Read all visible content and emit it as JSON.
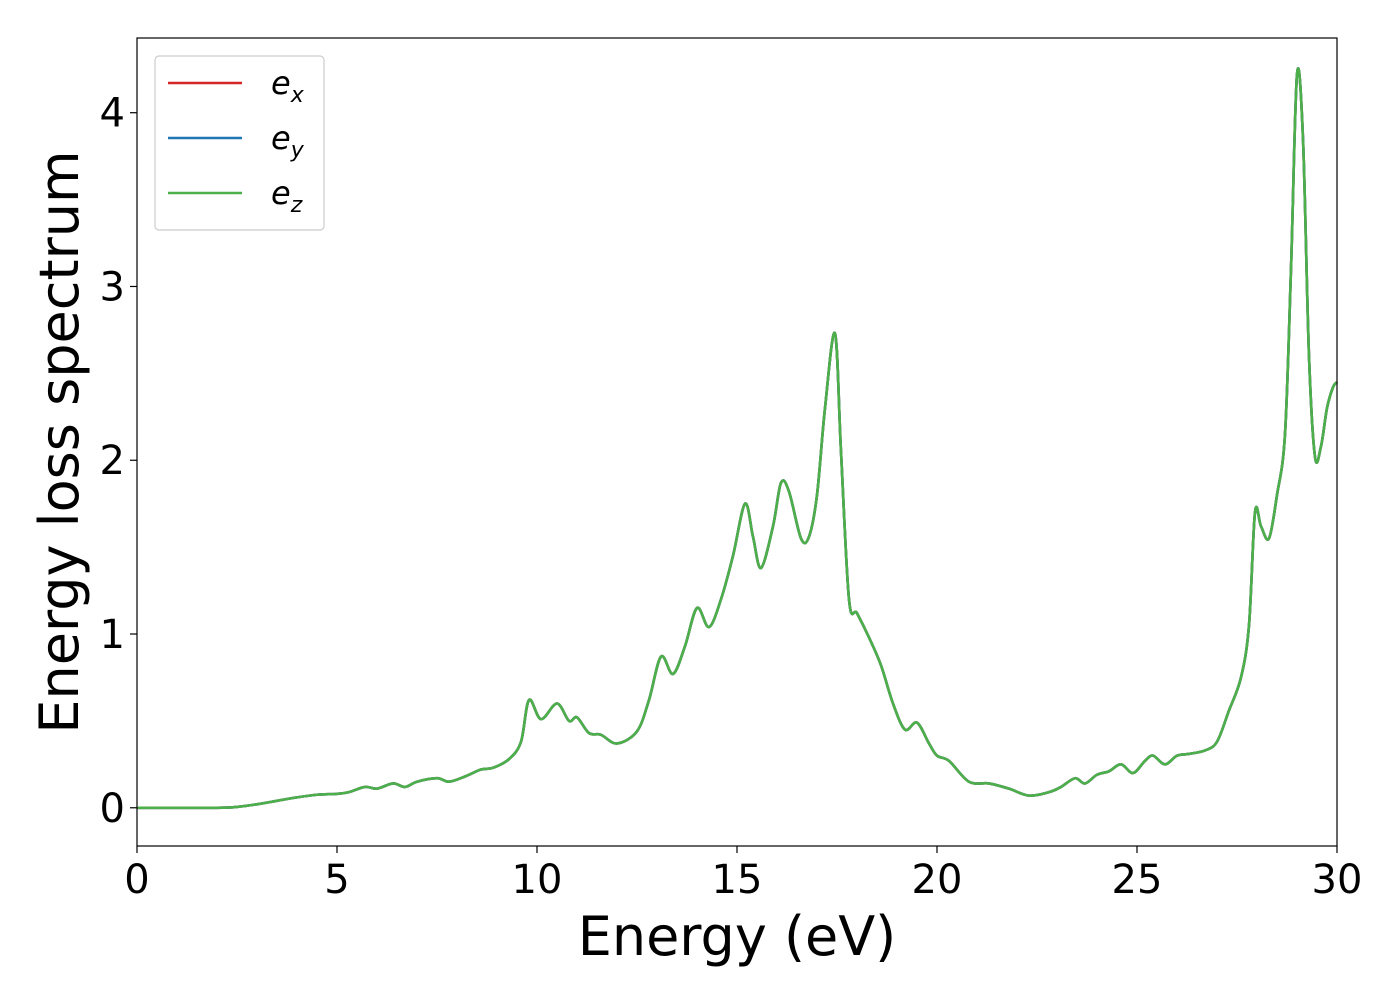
{
  "chart_data": {
    "type": "line",
    "title": "",
    "xlabel": "Energy (eV)",
    "ylabel": "Energy loss spectrum",
    "xlim": [
      0,
      30
    ],
    "ylim": [
      -0.22,
      4.43
    ],
    "xticks": [
      0,
      5,
      10,
      15,
      20,
      25,
      30
    ],
    "yticks": [
      0,
      1,
      2,
      3,
      4
    ],
    "xtick_labels": [
      "0",
      "5",
      "10",
      "15",
      "20",
      "25",
      "30"
    ],
    "ytick_labels": [
      "0",
      "1",
      "2",
      "3",
      "4"
    ],
    "grid": false,
    "legend_position": "top-left",
    "x": [
      0,
      1,
      2,
      2.5,
      3,
      3.5,
      4,
      4.5,
      5,
      5.3,
      5.7,
      6,
      6.4,
      6.7,
      7,
      7.5,
      7.8,
      8.2,
      8.6,
      8.9,
      9.3,
      9.6,
      9.8,
      10.1,
      10.5,
      10.8,
      11.0,
      11.3,
      11.6,
      12.0,
      12.5,
      12.8,
      13.1,
      13.4,
      13.7,
      14.0,
      14.3,
      14.6,
      14.9,
      15.2,
      15.4,
      15.6,
      15.9,
      16.1,
      16.3,
      16.6,
      16.8,
      17.0,
      17.2,
      17.45,
      17.6,
      17.8,
      18.0,
      18.3,
      18.6,
      18.9,
      19.2,
      19.5,
      19.8,
      20.0,
      20.3,
      20.8,
      21.3,
      21.8,
      22.3,
      22.8,
      23.1,
      23.45,
      23.7,
      24.0,
      24.3,
      24.6,
      24.9,
      25.2,
      25.4,
      25.7,
      26.0,
      26.3,
      26.7,
      27.0,
      27.3,
      27.6,
      27.8,
      27.95,
      28.1,
      28.3,
      28.5,
      28.7,
      28.85,
      29.0,
      29.15,
      29.3,
      29.45,
      29.6,
      29.75,
      29.9,
      30.0
    ],
    "series": [
      {
        "name": "e_x",
        "color": "#d62728",
        "values": [
          0,
          0,
          0,
          0.005,
          0.02,
          0.04,
          0.06,
          0.075,
          0.08,
          0.09,
          0.12,
          0.11,
          0.14,
          0.12,
          0.15,
          0.17,
          0.15,
          0.18,
          0.22,
          0.23,
          0.28,
          0.38,
          0.62,
          0.51,
          0.6,
          0.5,
          0.52,
          0.43,
          0.42,
          0.37,
          0.44,
          0.62,
          0.87,
          0.77,
          0.93,
          1.15,
          1.04,
          1.2,
          1.45,
          1.75,
          1.56,
          1.38,
          1.62,
          1.87,
          1.82,
          1.55,
          1.56,
          1.8,
          2.3,
          2.73,
          2.05,
          1.2,
          1.12,
          0.98,
          0.82,
          0.6,
          0.45,
          0.49,
          0.37,
          0.3,
          0.27,
          0.15,
          0.14,
          0.11,
          0.07,
          0.09,
          0.12,
          0.17,
          0.14,
          0.19,
          0.21,
          0.25,
          0.2,
          0.27,
          0.3,
          0.25,
          0.3,
          0.31,
          0.33,
          0.38,
          0.56,
          0.75,
          1.05,
          1.7,
          1.62,
          1.55,
          1.8,
          2.15,
          3.1,
          4.22,
          3.85,
          2.6,
          2.02,
          2.08,
          2.3,
          2.42,
          2.45
        ]
      },
      {
        "name": "e_y",
        "color": "#1f77b4",
        "values": [
          0,
          0,
          0,
          0.005,
          0.02,
          0.04,
          0.06,
          0.075,
          0.08,
          0.09,
          0.12,
          0.11,
          0.14,
          0.12,
          0.15,
          0.17,
          0.15,
          0.18,
          0.22,
          0.23,
          0.28,
          0.38,
          0.62,
          0.51,
          0.6,
          0.5,
          0.52,
          0.43,
          0.42,
          0.37,
          0.44,
          0.62,
          0.87,
          0.77,
          0.93,
          1.15,
          1.04,
          1.2,
          1.45,
          1.75,
          1.56,
          1.38,
          1.62,
          1.87,
          1.82,
          1.55,
          1.56,
          1.8,
          2.3,
          2.73,
          2.05,
          1.2,
          1.12,
          0.98,
          0.82,
          0.6,
          0.45,
          0.49,
          0.37,
          0.3,
          0.27,
          0.15,
          0.14,
          0.11,
          0.07,
          0.09,
          0.12,
          0.17,
          0.14,
          0.19,
          0.21,
          0.25,
          0.2,
          0.27,
          0.3,
          0.25,
          0.3,
          0.31,
          0.33,
          0.38,
          0.56,
          0.75,
          1.05,
          1.7,
          1.62,
          1.55,
          1.8,
          2.15,
          3.1,
          4.22,
          3.85,
          2.6,
          2.02,
          2.08,
          2.3,
          2.42,
          2.45
        ]
      },
      {
        "name": "e_z",
        "color": "#4daf4a",
        "values": [
          0,
          0,
          0,
          0.005,
          0.02,
          0.04,
          0.06,
          0.075,
          0.08,
          0.09,
          0.12,
          0.11,
          0.14,
          0.12,
          0.15,
          0.17,
          0.15,
          0.18,
          0.22,
          0.23,
          0.28,
          0.38,
          0.62,
          0.51,
          0.6,
          0.5,
          0.52,
          0.43,
          0.42,
          0.37,
          0.44,
          0.62,
          0.87,
          0.77,
          0.93,
          1.15,
          1.04,
          1.2,
          1.45,
          1.75,
          1.56,
          1.38,
          1.62,
          1.87,
          1.82,
          1.55,
          1.56,
          1.8,
          2.3,
          2.73,
          2.05,
          1.2,
          1.12,
          0.98,
          0.82,
          0.6,
          0.45,
          0.49,
          0.37,
          0.3,
          0.27,
          0.15,
          0.14,
          0.11,
          0.07,
          0.09,
          0.12,
          0.17,
          0.14,
          0.19,
          0.21,
          0.25,
          0.2,
          0.27,
          0.3,
          0.25,
          0.3,
          0.31,
          0.33,
          0.38,
          0.56,
          0.75,
          1.05,
          1.7,
          1.62,
          1.55,
          1.8,
          2.15,
          3.1,
          4.22,
          3.85,
          2.6,
          2.02,
          2.08,
          2.3,
          2.42,
          2.45
        ]
      }
    ],
    "legend": [
      {
        "base": "e",
        "sub": "x",
        "color": "#d62728"
      },
      {
        "base": "e",
        "sub": "y",
        "color": "#1f77b4"
      },
      {
        "base": "e",
        "sub": "z",
        "color": "#4daf4a"
      }
    ]
  }
}
